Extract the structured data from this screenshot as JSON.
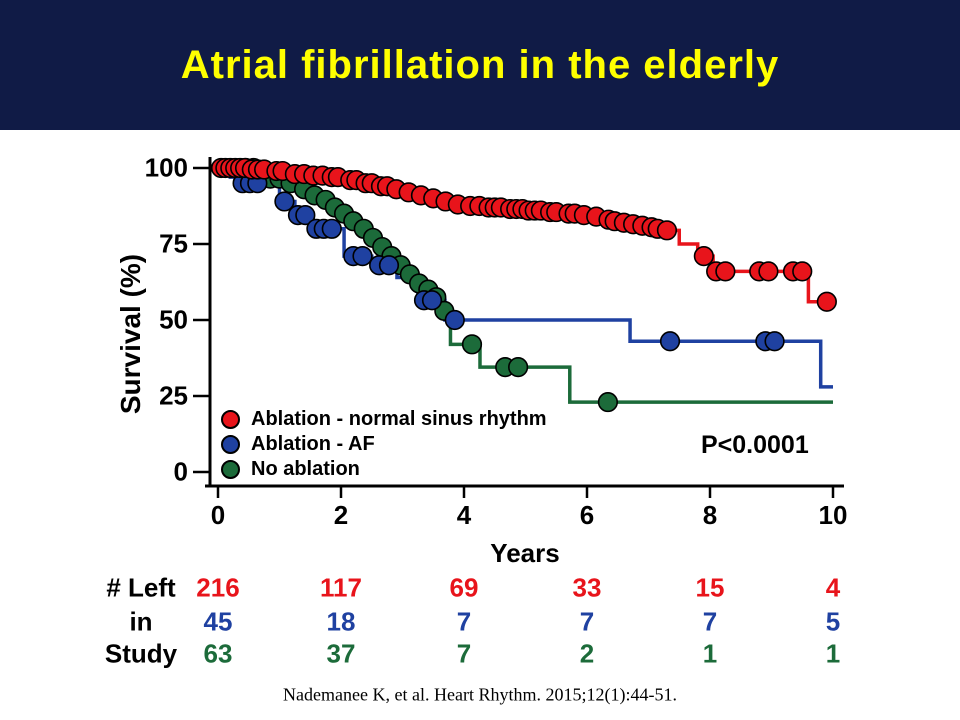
{
  "slide": {
    "title": "Atrial fibrillation in the elderly",
    "citation": "Nademanee K, et al. Heart Rhythm. 2015;12(1):44-51.",
    "colors": {
      "header_bg": "#101b46",
      "title_text": "#ffff00",
      "red": "#e8141b",
      "blue": "#1f41a1",
      "green": "#1c6b3a",
      "axis": "#000000"
    }
  },
  "chart_data": {
    "type": "line",
    "subtype": "kaplan-meier-step",
    "title": "",
    "xlabel": "Years",
    "ylabel": "Survival (%)",
    "xlim": [
      0,
      10
    ],
    "ylim": [
      0,
      100
    ],
    "xticks": [
      0,
      2,
      4,
      6,
      8,
      10
    ],
    "yticks": [
      100,
      75,
      50,
      25,
      0
    ],
    "grid": false,
    "annotation": "P<0.0001",
    "legend_position": "inside-lower-left",
    "series": [
      {
        "name": "Ablation - normal sinus rhythm",
        "color": "#e8141b",
        "steps": [
          [
            0,
            100
          ],
          [
            0.5,
            99.5
          ],
          [
            0.9,
            99
          ],
          [
            1.2,
            98
          ],
          [
            1.5,
            97.5
          ],
          [
            1.8,
            97
          ],
          [
            2.1,
            96
          ],
          [
            2.35,
            95
          ],
          [
            2.6,
            94
          ],
          [
            2.85,
            93
          ],
          [
            3.05,
            92
          ],
          [
            3.25,
            91
          ],
          [
            3.45,
            90
          ],
          [
            3.65,
            89
          ],
          [
            3.85,
            88
          ],
          [
            4.05,
            87.5
          ],
          [
            4.35,
            87
          ],
          [
            4.7,
            86.5
          ],
          [
            5.0,
            86
          ],
          [
            5.3,
            85.5
          ],
          [
            5.6,
            85
          ],
          [
            5.9,
            84.5
          ],
          [
            6.1,
            84
          ],
          [
            6.3,
            83
          ],
          [
            6.55,
            82
          ],
          [
            6.8,
            81
          ],
          [
            7.0,
            80.5
          ],
          [
            7.2,
            80
          ],
          [
            7.35,
            79.5
          ],
          [
            7.5,
            75
          ],
          [
            7.8,
            71
          ],
          [
            8.05,
            66
          ],
          [
            9.6,
            56
          ],
          [
            9.95,
            56
          ]
        ],
        "censors": [
          [
            0.05,
            100
          ],
          [
            0.12,
            100
          ],
          [
            0.2,
            100
          ],
          [
            0.28,
            100
          ],
          [
            0.36,
            100
          ],
          [
            0.44,
            100
          ],
          [
            0.55,
            99.5
          ],
          [
            0.65,
            99.5
          ],
          [
            0.75,
            99.5
          ],
          [
            0.95,
            99
          ],
          [
            1.05,
            99
          ],
          [
            1.25,
            98
          ],
          [
            1.4,
            98
          ],
          [
            1.55,
            97.5
          ],
          [
            1.7,
            97.5
          ],
          [
            1.85,
            97
          ],
          [
            1.95,
            97
          ],
          [
            2.15,
            96
          ],
          [
            2.25,
            96
          ],
          [
            2.4,
            95
          ],
          [
            2.5,
            95
          ],
          [
            2.65,
            94
          ],
          [
            2.75,
            94
          ],
          [
            2.9,
            93
          ],
          [
            3.1,
            92
          ],
          [
            3.3,
            91
          ],
          [
            3.5,
            90
          ],
          [
            3.7,
            89
          ],
          [
            3.9,
            88
          ],
          [
            4.1,
            87.5
          ],
          [
            4.25,
            87.5
          ],
          [
            4.4,
            87
          ],
          [
            4.5,
            87
          ],
          [
            4.6,
            87
          ],
          [
            4.75,
            86.5
          ],
          [
            4.85,
            86.5
          ],
          [
            4.95,
            86.5
          ],
          [
            5.05,
            86
          ],
          [
            5.15,
            86
          ],
          [
            5.25,
            86
          ],
          [
            5.4,
            85.5
          ],
          [
            5.5,
            85.5
          ],
          [
            5.7,
            85
          ],
          [
            5.8,
            85
          ],
          [
            5.95,
            84.5
          ],
          [
            6.15,
            84
          ],
          [
            6.35,
            83
          ],
          [
            6.45,
            82.5
          ],
          [
            6.6,
            82
          ],
          [
            6.75,
            81.5
          ],
          [
            6.9,
            81
          ],
          [
            7.05,
            80.5
          ],
          [
            7.15,
            80
          ],
          [
            7.3,
            79.5
          ],
          [
            7.9,
            71
          ],
          [
            8.1,
            66
          ],
          [
            8.25,
            66
          ],
          [
            8.8,
            66
          ],
          [
            8.95,
            66
          ],
          [
            9.35,
            66
          ],
          [
            9.5,
            66
          ],
          [
            9.9,
            56
          ]
        ]
      },
      {
        "name": "Ablation - AF",
        "color": "#1f41a1",
        "steps": [
          [
            0,
            100
          ],
          [
            0.2,
            97
          ],
          [
            0.35,
            95
          ],
          [
            0.75,
            94.5
          ],
          [
            1.0,
            89
          ],
          [
            1.25,
            84.5
          ],
          [
            1.55,
            80
          ],
          [
            2.05,
            71
          ],
          [
            2.5,
            68
          ],
          [
            2.91,
            64
          ],
          [
            3.25,
            56.5
          ],
          [
            3.69,
            50
          ],
          [
            6.7,
            43
          ],
          [
            9.8,
            28
          ],
          [
            10.0,
            28
          ]
        ],
        "censors": [
          [
            0.4,
            95
          ],
          [
            0.52,
            95
          ],
          [
            0.64,
            95
          ],
          [
            1.08,
            89
          ],
          [
            1.3,
            84.5
          ],
          [
            1.42,
            84.5
          ],
          [
            1.6,
            80
          ],
          [
            1.72,
            80
          ],
          [
            1.85,
            80
          ],
          [
            2.2,
            71
          ],
          [
            2.35,
            71
          ],
          [
            2.62,
            68
          ],
          [
            2.78,
            68
          ],
          [
            3.35,
            56.5
          ],
          [
            3.48,
            56.5
          ],
          [
            3.85,
            50
          ],
          [
            7.35,
            43
          ],
          [
            8.9,
            43
          ],
          [
            9.05,
            43
          ]
        ]
      },
      {
        "name": "No ablation",
        "color": "#1c6b3a",
        "steps": [
          [
            0,
            100
          ],
          [
            0.72,
            96.5
          ],
          [
            1.1,
            95
          ],
          [
            1.33,
            93
          ],
          [
            1.5,
            91
          ],
          [
            1.68,
            89.5
          ],
          [
            1.85,
            87
          ],
          [
            2.0,
            85
          ],
          [
            2.15,
            82.5
          ],
          [
            2.3,
            80
          ],
          [
            2.45,
            77
          ],
          [
            2.6,
            74
          ],
          [
            2.75,
            71
          ],
          [
            2.9,
            68
          ],
          [
            3.05,
            65
          ],
          [
            3.2,
            62
          ],
          [
            3.35,
            60
          ],
          [
            3.5,
            57.5
          ],
          [
            3.62,
            55
          ],
          [
            3.72,
            53
          ],
          [
            3.78,
            42
          ],
          [
            4.26,
            34.5
          ],
          [
            5.72,
            23
          ],
          [
            10.0,
            23
          ]
        ],
        "censors": [
          [
            0.45,
            100
          ],
          [
            0.58,
            100
          ],
          [
            0.85,
            96.5
          ],
          [
            1.0,
            96.5
          ],
          [
            1.18,
            95
          ],
          [
            1.4,
            93
          ],
          [
            1.57,
            91
          ],
          [
            1.75,
            89.5
          ],
          [
            1.9,
            87
          ],
          [
            2.05,
            85
          ],
          [
            2.2,
            82.5
          ],
          [
            2.37,
            80
          ],
          [
            2.52,
            77
          ],
          [
            2.67,
            74
          ],
          [
            2.82,
            71
          ],
          [
            2.97,
            68
          ],
          [
            3.12,
            65
          ],
          [
            3.27,
            62
          ],
          [
            3.42,
            60
          ],
          [
            3.55,
            57.5
          ],
          [
            3.68,
            53
          ],
          [
            4.13,
            42
          ],
          [
            4.67,
            34.5
          ],
          [
            4.88,
            34.5
          ],
          [
            6.34,
            23
          ]
        ]
      }
    ]
  },
  "risk_table": {
    "label_lines": [
      "# Left",
      "in",
      "Study"
    ],
    "columns": [
      0,
      2,
      4,
      6,
      8,
      10
    ],
    "rows": [
      {
        "series": "Ablation - normal sinus rhythm",
        "color": "#e8141b",
        "values": [
          216,
          117,
          69,
          33,
          15,
          4
        ]
      },
      {
        "series": "Ablation - AF",
        "color": "#1f41a1",
        "values": [
          45,
          18,
          7,
          7,
          7,
          5
        ]
      },
      {
        "series": "No ablation",
        "color": "#1c6b3a",
        "values": [
          63,
          37,
          7,
          2,
          1,
          1
        ]
      }
    ]
  }
}
